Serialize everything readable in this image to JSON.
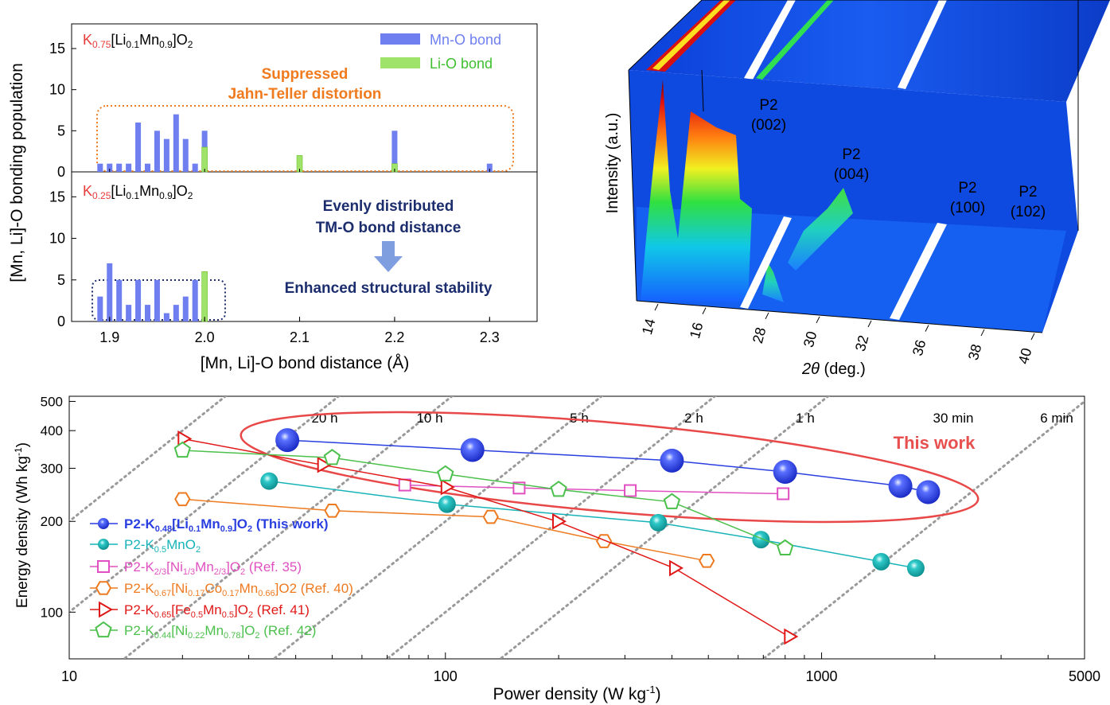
{
  "colors": {
    "mn_o": "#6f7ff0",
    "li_o": "#9fe36a",
    "orange": "#f07a1e",
    "navy": "#1c2d6e",
    "this_work": "#e83a3a"
  },
  "hist": {
    "xlabel": "[Mn, Li]-O bond distance (Å)",
    "ylabel": "[Mn, Li]-O bonding population",
    "xticks": [
      "1.9",
      "2.0",
      "2.1",
      "2.2",
      "2.3"
    ],
    "yticks": [
      "0",
      "5",
      "10",
      "15"
    ],
    "legend": {
      "mn": "Mn-O bond",
      "li": "Li-O bond"
    },
    "top": {
      "formula": {
        "k": "K",
        "k_sub": "0.75",
        "rest": "[Li",
        "li_sub": "0.1",
        "mn": "Mn",
        "mn_sub": "0.9",
        "tail": "]O",
        "o_sub": "2"
      },
      "note1": "Suppressed",
      "note2": "Jahn-Teller distortion"
    },
    "bottom": {
      "formula": {
        "k": "K",
        "k_sub": "0.25",
        "rest": "[Li",
        "li_sub": "0.1",
        "mn": "Mn",
        "mn_sub": "0.9",
        "tail": "]O",
        "o_sub": "2"
      },
      "note1": "Evenly distributed",
      "note2": "TM-O bond distance",
      "note3": "Enhanced structural stability"
    }
  },
  "xrd": {
    "ylabel": "Intensity (a.u.)",
    "xlabel_sym": "2θ",
    "xlabel_unit": " (deg.)",
    "ticks": [
      "14",
      "16",
      "28",
      "30",
      "32",
      "36",
      "38",
      "40"
    ],
    "peaks": [
      [
        "P2",
        "(002)"
      ],
      [
        "P2",
        "(004)"
      ],
      [
        "P2",
        "(100)"
      ],
      [
        "P2",
        "(102)"
      ]
    ]
  },
  "ragone": {
    "xlabel": "Power density (W kg",
    "xlabel_sup": "-1",
    "xlabel_end": ")",
    "ylabel": "Energy density (Wh kg",
    "ylabel_sup": "-1",
    "ylabel_end": ")",
    "xticks": [
      "10",
      "100",
      "1000",
      "5000"
    ],
    "yticks": [
      "100",
      "200",
      "300",
      "400",
      "500"
    ],
    "time_labels": [
      "20 h",
      "10 h",
      "5 h",
      "2 h",
      "1 h",
      "30 min",
      "6 min"
    ],
    "this_work": "This work",
    "legend": [
      {
        "main": "P2-K",
        "sub1": "0.48",
        "mid": "[Li",
        "sub2": "0.1",
        "mid2": "Mn",
        "sub3": "0.9",
        "end": "]O",
        "sub4": "2",
        "ref": " (This work)"
      },
      {
        "main": "P2-K",
        "sub1": "0.5",
        "mid": "MnO",
        "sub2": "2",
        "mid2": "",
        "sub3": "",
        "end": "",
        "sub4": "",
        "ref": ""
      },
      {
        "main": "P2-K",
        "sub1": "2/3",
        "mid": "[Ni",
        "sub2": "1/3",
        "mid2": "Mn",
        "sub3": "2/3",
        "end": "]O",
        "sub4": "2",
        "ref": " (Ref. 35)"
      },
      {
        "main": "P2-K",
        "sub1": "0.67",
        "mid": "[Ni",
        "sub2": "0.17",
        "mid2": "Co",
        "sub3": "0.17",
        "end": "Mn",
        "sub4": "0.66",
        "ref": "]O2 (Ref. 40)"
      },
      {
        "main": "P2-K",
        "sub1": "0.65",
        "mid": "[Fe",
        "sub2": "0.5",
        "mid2": "Mn",
        "sub3": "0.5",
        "end": "]O",
        "sub4": "2",
        "ref": " (Ref. 41)"
      },
      {
        "main": "P2-K",
        "sub1": "0.44",
        "mid": "[Ni",
        "sub2": "0.22",
        "mid2": "Mn",
        "sub3": "0.78",
        "end": "]O",
        "sub4": "2",
        "ref": " (Ref. 42)"
      }
    ]
  },
  "chart_data": [
    {
      "type": "bar",
      "title": "K0.75[Li0.1Mn0.9]O2",
      "xlabel": "[Mn, Li]-O bond distance (Å)",
      "ylabel": "[Mn, Li]-O bonding population",
      "xlim": [
        1.86,
        2.35
      ],
      "ylim": [
        0,
        18
      ],
      "series": [
        {
          "name": "Mn-O bond",
          "x": [
            1.89,
            1.9,
            1.91,
            1.92,
            1.93,
            1.94,
            1.95,
            1.96,
            1.97,
            1.98,
            1.99,
            2.0,
            2.2,
            2.3
          ],
          "values": [
            1,
            1,
            1,
            1,
            6,
            1,
            5,
            4,
            7,
            4,
            1,
            5,
            5,
            1
          ]
        },
        {
          "name": "Li-O bond",
          "x": [
            2.0,
            2.1,
            2.2
          ],
          "values": [
            3,
            2,
            1
          ]
        }
      ]
    },
    {
      "type": "bar",
      "title": "K0.25[Li0.1Mn0.9]O2",
      "xlabel": "[Mn, Li]-O bond distance (Å)",
      "ylabel": "[Mn, Li]-O bonding population",
      "xlim": [
        1.86,
        2.35
      ],
      "ylim": [
        0,
        18
      ],
      "series": [
        {
          "name": "Mn-O bond",
          "x": [
            1.89,
            1.9,
            1.91,
            1.92,
            1.93,
            1.94,
            1.95,
            1.96,
            1.97,
            1.98,
            1.99,
            2.0
          ],
          "values": [
            3,
            7,
            5,
            2,
            5,
            2,
            5,
            1,
            2,
            3,
            5,
            2
          ]
        },
        {
          "name": "Li-O bond",
          "x": [
            2.0
          ],
          "values": [
            6
          ]
        }
      ]
    },
    {
      "type": "line",
      "xlabel": "Power density (W kg-1)",
      "ylabel": "Energy density (Wh kg-1)",
      "xscale": "log",
      "yscale": "log",
      "xlim": [
        10,
        5000
      ],
      "ylim": [
        70,
        520
      ],
      "series": [
        {
          "name": "P2-K0.48[Li0.1Mn0.9]O2 (This work)",
          "x": [
            38,
            118,
            400,
            800,
            1620,
            1920
          ],
          "values": [
            372,
            345,
            318,
            292,
            262,
            250
          ]
        },
        {
          "name": "P2-K0.5MnO2",
          "x": [
            34,
            101,
            368,
            690,
            1440,
            1780
          ],
          "values": [
            272,
            228,
            198,
            174,
            147,
            140
          ]
        },
        {
          "name": "P2-K2/3[Ni1/3Mn2/3]O2 (Ref. 35)",
          "x": [
            78,
            157,
            310,
            790
          ],
          "values": [
            264,
            258,
            253,
            247
          ]
        },
        {
          "name": "P2-K0.67[Ni0.17Co0.17Mn0.66]O2 (Ref. 40)",
          "x": [
            20,
            50,
            132,
            264,
            495
          ],
          "values": [
            237,
            217,
            207,
            172,
            148
          ]
        },
        {
          "name": "P2-K0.65[Fe0.5Mn0.5]O2 (Ref. 41)",
          "x": [
            20,
            47,
            100,
            198,
            405,
            818
          ],
          "values": [
            376,
            308,
            260,
            200,
            140,
            83
          ]
        },
        {
          "name": "P2-K0.44[Ni0.22Mn0.78]O2 (Ref. 42)",
          "x": [
            20,
            50,
            100,
            200,
            400,
            800
          ],
          "values": [
            344,
            325,
            287,
            255,
            232,
            163
          ]
        }
      ]
    }
  ]
}
